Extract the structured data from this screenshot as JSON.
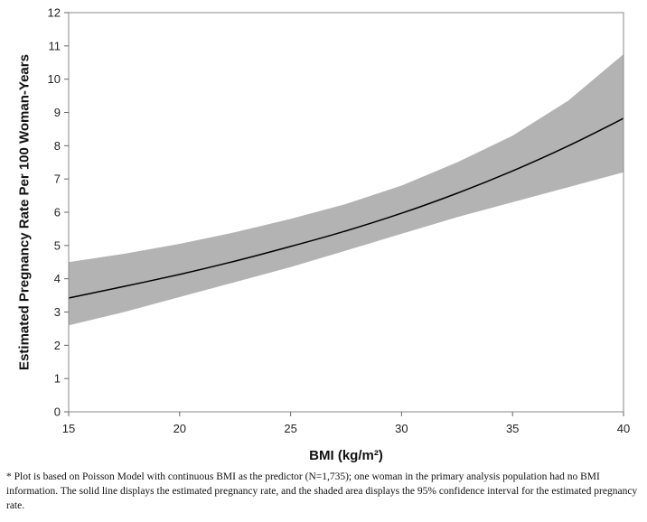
{
  "chart_data": {
    "type": "line",
    "xlabel": "BMI (kg/m²)",
    "ylabel": "Estimated Pregnancy Rate Per 100 Woman-Years",
    "xlim": [
      15,
      40
    ],
    "ylim": [
      0,
      12
    ],
    "x_ticks": [
      "15",
      "20",
      "25",
      "30",
      "35",
      "40"
    ],
    "y_ticks": [
      "0",
      "1",
      "2",
      "3",
      "4",
      "5",
      "6",
      "7",
      "8",
      "9",
      "10",
      "11",
      "12"
    ],
    "grid": false,
    "x": [
      15,
      17.5,
      20,
      22.5,
      25,
      27.5,
      30,
      32.5,
      35,
      37.5,
      40
    ],
    "series": [
      {
        "values": [
          3.42,
          3.77,
          4.13,
          4.53,
          4.97,
          5.44,
          5.97,
          6.57,
          7.24,
          7.99,
          8.82
        ],
        "color": "#000000"
      }
    ],
    "band": {
      "lower": [
        2.6,
        3.0,
        3.45,
        3.9,
        4.35,
        4.85,
        5.35,
        5.85,
        6.3,
        6.75,
        7.2
      ],
      "upper": [
        4.5,
        4.75,
        5.05,
        5.4,
        5.8,
        6.25,
        6.8,
        7.5,
        8.3,
        9.35,
        10.75
      ],
      "color": "#b3b3b3"
    }
  },
  "footnote": "* Plot is based on Poisson Model with continuous BMI as the predictor (N=1,735); one woman in the primary analysis population had no BMI information. The solid line displays the estimated pregnancy rate, and the shaded area displays the 95% confidence interval for the estimated pregnancy rate."
}
